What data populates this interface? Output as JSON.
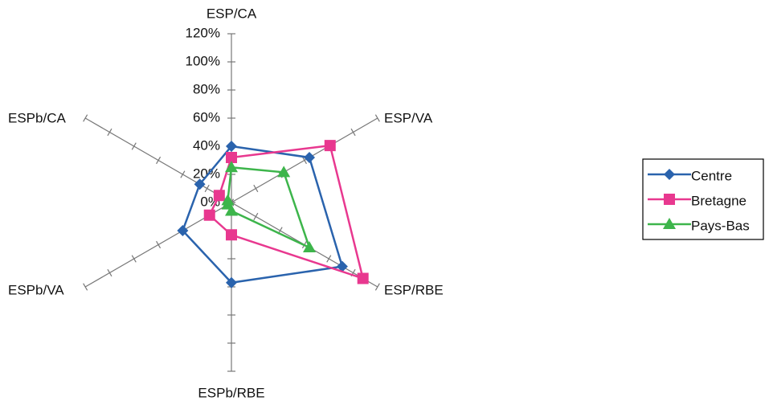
{
  "chart_data": {
    "type": "radar",
    "categories": [
      "ESP/CA",
      "ESP/VA",
      "ESP/RBE",
      "ESPb/RBE",
      "ESPb/VA",
      "ESPb/CA"
    ],
    "series": [
      {
        "name": "Centre",
        "color": "#2a63ad",
        "marker": "diamond",
        "values": [
          40,
          64,
          91,
          57,
          40,
          26
        ]
      },
      {
        "name": "Bretagne",
        "color": "#e8388f",
        "marker": "square",
        "values": [
          32,
          81,
          108,
          23,
          18,
          10
        ]
      },
      {
        "name": "Pays-Bas",
        "color": "#3db54b",
        "marker": "triangle",
        "values": [
          25,
          43,
          64,
          6,
          3,
          3
        ]
      }
    ],
    "ylim": [
      0,
      120
    ],
    "yticks": [
      {
        "value": 0,
        "label": "0%"
      },
      {
        "value": 20,
        "label": "20%"
      },
      {
        "value": 40,
        "label": "40%"
      },
      {
        "value": 60,
        "label": "60%"
      },
      {
        "value": 80,
        "label": "80%"
      },
      {
        "value": 100,
        "label": "100%"
      },
      {
        "value": 120,
        "label": "120%"
      }
    ],
    "legend": "right"
  }
}
